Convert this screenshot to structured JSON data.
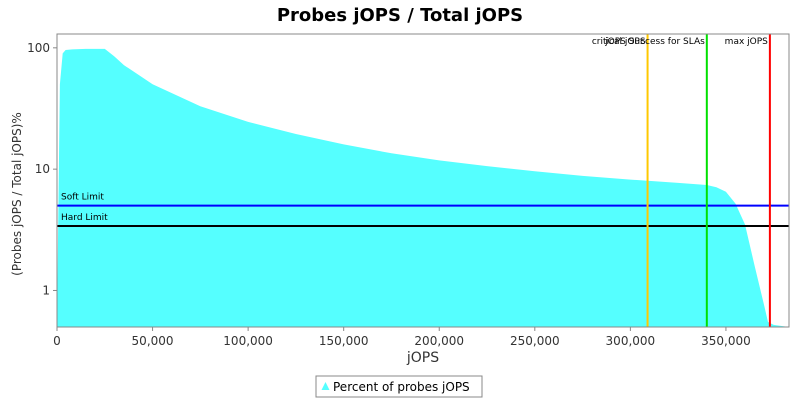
{
  "chart_data": {
    "type": "area",
    "title": "Probes jOPS / Total jOPS",
    "xlabel": "jOPS",
    "ylabel": "(Probes jOPS / Total jOPS)%",
    "y_scale": "log",
    "xlim": [
      0,
      383000
    ],
    "ylim": [
      0.5,
      130
    ],
    "x_ticks": [
      0,
      50000,
      100000,
      150000,
      200000,
      250000,
      300000,
      350000
    ],
    "x_tick_labels": [
      "0",
      "50,000",
      "100,000",
      "150,000",
      "200,000",
      "250,000",
      "300,000",
      "350,000"
    ],
    "y_ticks": [
      1,
      10,
      100
    ],
    "y_tick_labels": [
      "1",
      "10",
      "100"
    ],
    "grid": false,
    "legend_position": "bottom",
    "series": [
      {
        "name": "Percent of probes jOPS",
        "color": "#55FFFF",
        "x": [
          0,
          1500,
          3000,
          4500,
          8000,
          15000,
          25000,
          30000,
          35000,
          50000,
          75000,
          100000,
          125000,
          150000,
          175000,
          200000,
          225000,
          250000,
          275000,
          300000,
          325000,
          340000,
          345000,
          350000,
          355000,
          360000,
          365000,
          370000,
          372000,
          375000,
          383000
        ],
        "values": [
          0.55,
          50,
          90,
          96,
          97,
          98,
          98,
          85,
          72,
          50,
          33,
          24.5,
          19.5,
          16,
          13.5,
          11.8,
          10.6,
          9.6,
          8.8,
          8.2,
          7.7,
          7.4,
          7.1,
          6.5,
          5.2,
          3.5,
          1.6,
          0.75,
          0.55,
          0.52,
          0.5
        ]
      }
    ],
    "threshold_lines": [
      {
        "name": "Soft Limit",
        "orientation": "horizontal",
        "value": 5,
        "color": "#0000FF"
      },
      {
        "name": "Hard Limit",
        "orientation": "horizontal",
        "value": 3.4,
        "color": "#000000"
      },
      {
        "name": "critical jOPS",
        "orientation": "vertical",
        "value": 309000,
        "color": "#FFC800"
      },
      {
        "name": "jOPS Success for SLAs",
        "orientation": "vertical",
        "value": 340000,
        "color": "#00E000"
      },
      {
        "name": "max jOPS",
        "orientation": "vertical",
        "value": 373000,
        "color": "#FF0000"
      }
    ]
  }
}
